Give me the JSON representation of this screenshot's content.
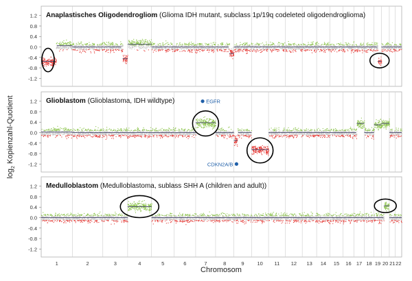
{
  "chart_data": {
    "type": "scatter",
    "ylabel_main": "log",
    "ylabel_sub": "2",
    "ylabel_rest": " Kopienzahl-Quotient",
    "xlabel": "Chromosom",
    "chromosomes": [
      "1",
      "2",
      "3",
      "4",
      "5",
      "6",
      "7",
      "8",
      "9",
      "10",
      "11",
      "12",
      "13",
      "14",
      "15",
      "16",
      "17",
      "18",
      "19",
      "20",
      "21",
      "22"
    ],
    "chrom_sizes": [
      249,
      243,
      198,
      191,
      181,
      171,
      159,
      146,
      141,
      136,
      135,
      134,
      115,
      107,
      102,
      90,
      81,
      78,
      59,
      63,
      48,
      51
    ],
    "yticks": [
      "1.2",
      "0.8",
      "0.4",
      "0.0",
      "-0.4",
      "-0.8",
      "-1.2"
    ],
    "yvalues": [
      1.2,
      0.8,
      0.4,
      0.0,
      -0.4,
      -0.8,
      -1.2
    ],
    "ylim": [
      -1.35,
      1.35
    ],
    "colors": {
      "gain": "#8bc34a",
      "loss": "#e53935",
      "neutral": "#c8c8c8",
      "segment": "#555577",
      "marker": "#1f5fa8",
      "sepline": "#cccccc",
      "frame": "#b0b0b0"
    },
    "panels": [
      {
        "title_bold": "Anaplastisches Oligodendrogliom",
        "title_rest": " (Glioma IDH mutant, subclass 1p/19q codeleted oligodendroglioma)",
        "segments": [
          {
            "chr": "1",
            "from": 0.0,
            "to": 0.47,
            "level": -0.55
          },
          {
            "chr": "1",
            "from": 0.47,
            "to": 1.0,
            "level": 0.05
          },
          {
            "chr": "3",
            "from": 0.8,
            "to": 1.0,
            "level": -0.45
          },
          {
            "chr": "4",
            "from": 0.0,
            "to": 1.0,
            "level": 0.1
          },
          {
            "chr": "8",
            "from": 0.75,
            "to": 1.0,
            "level": -0.25
          },
          {
            "chr": "19",
            "from": 0.5,
            "to": 1.0,
            "level": -0.55
          }
        ],
        "circles": [
          {
            "chr": "1",
            "pos": 0.22,
            "level": -0.5,
            "w": 0.9,
            "h": 0.45
          },
          {
            "chr": "19",
            "pos": 0.75,
            "level": -0.52,
            "w": 1.4,
            "h": 0.28
          }
        ],
        "markers": []
      },
      {
        "title_bold": "Glioblastom",
        "title_rest": " (Glioblastoma, IDH wildtype)",
        "segments": [
          {
            "chr": "1",
            "from": 0.0,
            "to": 1.0,
            "level": 0.02
          },
          {
            "chr": "7",
            "from": 0.0,
            "to": 1.0,
            "level": 0.38
          },
          {
            "chr": "9",
            "from": 0.0,
            "to": 0.2,
            "level": -0.3
          },
          {
            "chr": "10",
            "from": 0.0,
            "to": 1.0,
            "level": -0.65
          },
          {
            "chr": "17",
            "from": 0.25,
            "to": 1.0,
            "level": 0.35
          },
          {
            "chr": "19",
            "from": 0.0,
            "to": 1.0,
            "level": 0.3
          },
          {
            "chr": "20",
            "from": 0.0,
            "to": 1.0,
            "level": 0.35
          }
        ],
        "circles": [
          {
            "chr": "7",
            "pos": 0.5,
            "level": 0.35,
            "w": 1.9,
            "h": 0.48
          },
          {
            "chr": "10",
            "pos": 0.5,
            "level": -0.68,
            "w": 1.9,
            "h": 0.48
          }
        ],
        "markers": [
          {
            "label": "EGFR",
            "chr": "7",
            "pos": 0.35,
            "value": 1.2,
            "side": "right"
          },
          {
            "label": "CDKN2A/B",
            "chr": "9",
            "pos": 0.15,
            "value": -1.2,
            "side": "left"
          }
        ]
      },
      {
        "title_bold": "Medulloblastom",
        "title_rest": " (Medulloblastoma, sublass SHH A (children and adult))",
        "segments": [
          {
            "chr": "4",
            "from": 0.0,
            "to": 1.0,
            "level": 0.42
          },
          {
            "chr": "20",
            "from": 0.3,
            "to": 1.0,
            "level": 0.45
          }
        ],
        "circles": [
          {
            "chr": "4",
            "pos": 0.5,
            "level": 0.42,
            "w": 2.8,
            "h": 0.42
          },
          {
            "chr": "20",
            "pos": 0.5,
            "level": 0.45,
            "w": 1.6,
            "h": 0.26
          }
        ],
        "markers": []
      }
    ]
  }
}
